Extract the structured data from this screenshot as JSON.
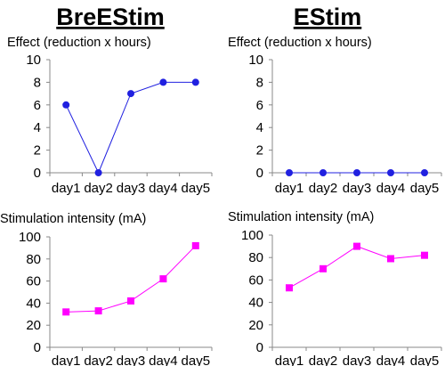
{
  "chart_data": [
    {
      "type": "line",
      "heading": "BreEStim",
      "ylabel": "Effect (reduction x hours)",
      "categories": [
        "day1",
        "day2",
        "day3",
        "day4",
        "day5"
      ],
      "series": [
        {
          "values": [
            6,
            0,
            7,
            8,
            8
          ],
          "color": "#2020e0",
          "marker": "circle"
        }
      ],
      "ylim": [
        0,
        10
      ],
      "yticks": [
        0,
        2,
        4,
        6,
        8,
        10
      ],
      "grid": false
    },
    {
      "type": "line",
      "heading": "EStim",
      "ylabel": "Effect (reduction x hours)",
      "categories": [
        "day1",
        "day2",
        "day3",
        "day4",
        "day5"
      ],
      "series": [
        {
          "values": [
            0,
            0,
            0,
            0,
            0
          ],
          "color": "#2020e0",
          "marker": "circle"
        }
      ],
      "ylim": [
        0,
        10
      ],
      "yticks": [
        0,
        2,
        4,
        6,
        8,
        10
      ],
      "grid": false
    },
    {
      "type": "line",
      "heading": "",
      "ylabel": "Stimulation intensity (mA)",
      "categories": [
        "day1",
        "day2",
        "day3",
        "day4",
        "day5"
      ],
      "series": [
        {
          "values": [
            32,
            33,
            42,
            62,
            92
          ],
          "color": "#ff00ff",
          "marker": "square"
        }
      ],
      "ylim": [
        0,
        100
      ],
      "yticks": [
        0,
        20,
        40,
        60,
        80,
        100
      ],
      "grid": false
    },
    {
      "type": "line",
      "heading": "",
      "ylabel": "Stimulation intensity (mA)",
      "categories": [
        "day1",
        "day2",
        "day3",
        "day4",
        "day5"
      ],
      "series": [
        {
          "values": [
            53,
            70,
            90,
            79,
            82
          ],
          "color": "#ff00ff",
          "marker": "square"
        }
      ],
      "ylim": [
        0,
        100
      ],
      "yticks": [
        0,
        20,
        40,
        60,
        80,
        100
      ],
      "grid": false
    }
  ]
}
